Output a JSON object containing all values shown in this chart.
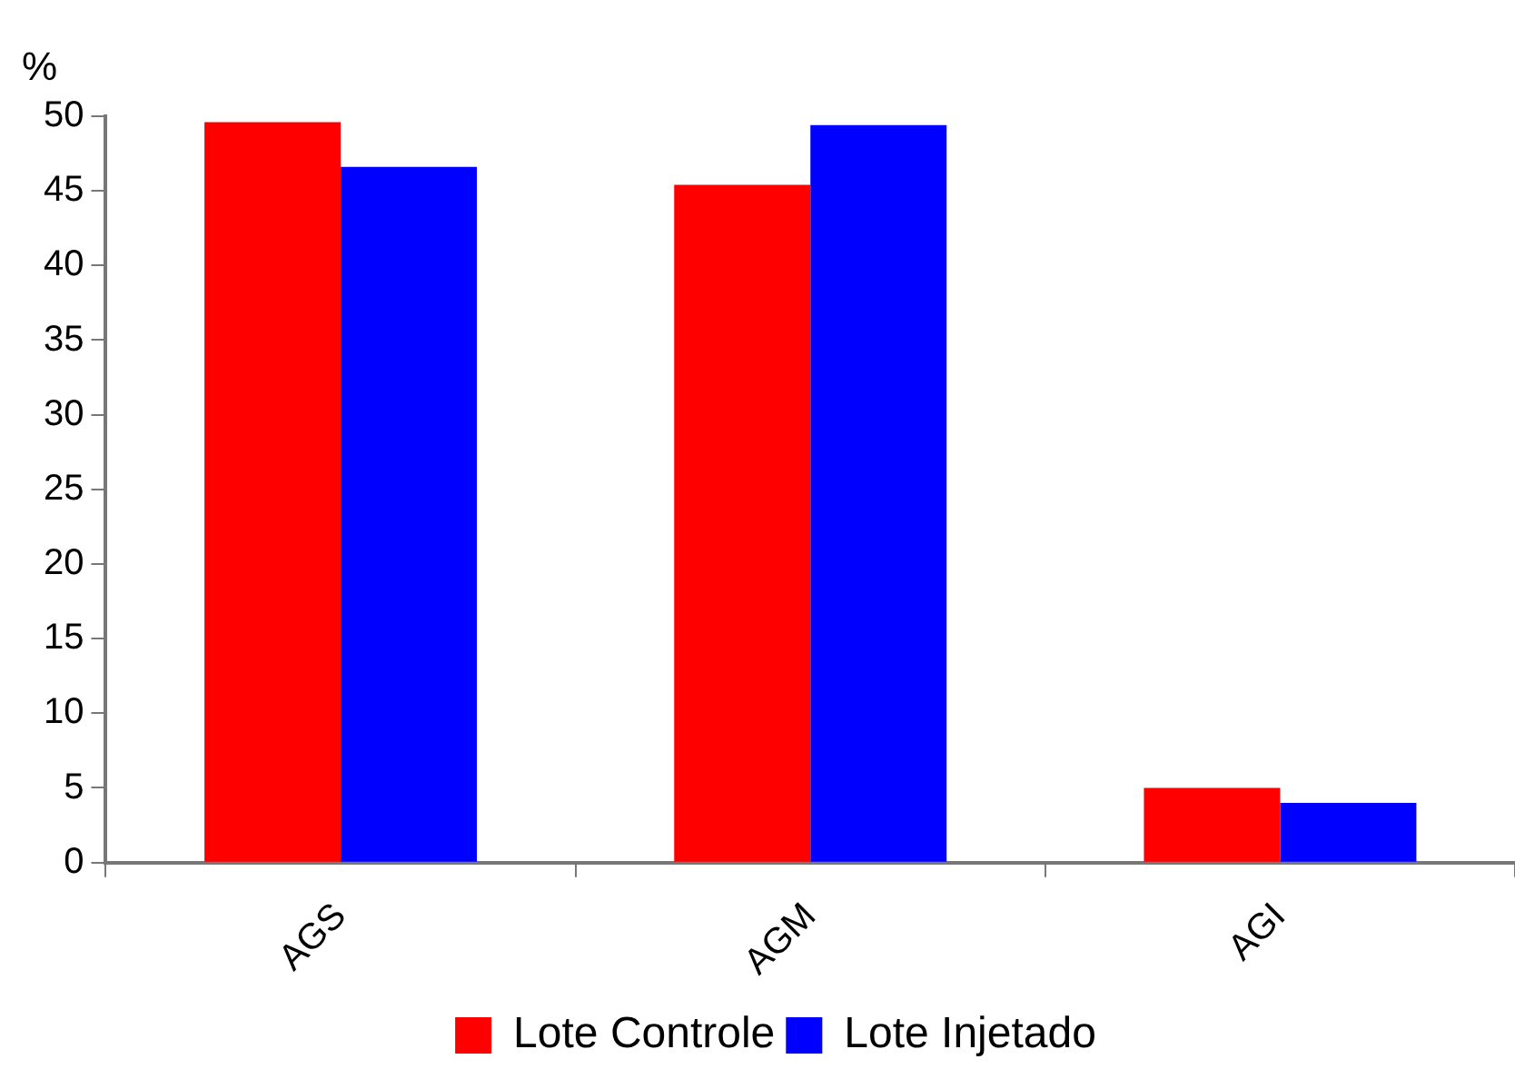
{
  "chart_data": {
    "type": "bar",
    "ylabel": "%",
    "categories": [
      "AGS",
      "AGM",
      "AGI"
    ],
    "series": [
      {
        "name": "Lote Controle",
        "color": "#ff0000",
        "values": [
          49.6,
          45.4,
          5.0
        ]
      },
      {
        "name": "Lote Injetado",
        "color": "#0000ff",
        "values": [
          46.6,
          49.4,
          4.0
        ]
      }
    ],
    "ylim": [
      0,
      50
    ],
    "yticks": [
      0,
      5,
      10,
      15,
      20,
      25,
      30,
      35,
      40,
      45,
      50
    ],
    "grid": false,
    "legend": "bottom"
  }
}
